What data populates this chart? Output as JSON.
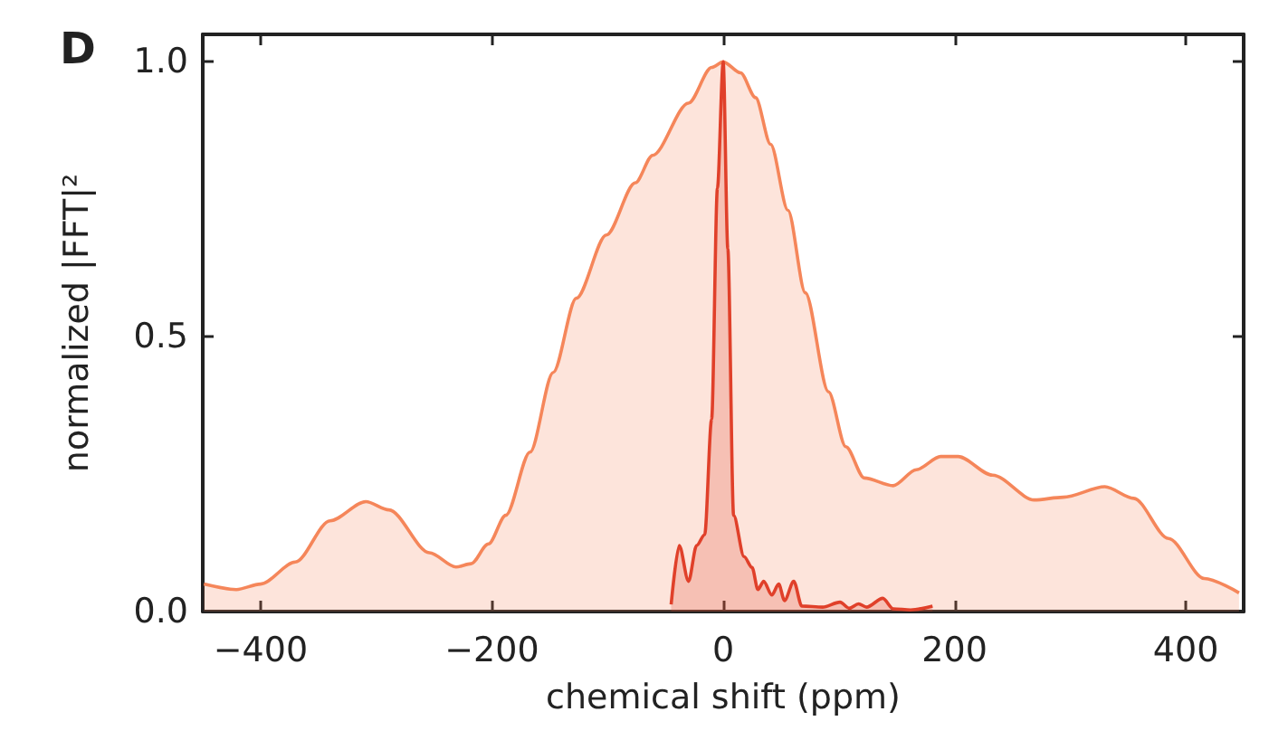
{
  "chart_data": {
    "type": "area",
    "title": "D",
    "xlabel": "chemical shift (ppm)",
    "ylabel": "normalized |FFT|²",
    "xlim": [
      -450,
      450
    ],
    "xticks": [
      -400,
      -200,
      0,
      200,
      400
    ],
    "ylim": [
      0,
      1.05
    ],
    "yticks": [
      {
        "value": 0,
        "label": "0.0"
      },
      0.5,
      {
        "value": 1,
        "label": "1.0"
      }
    ],
    "grid": false,
    "marker": "none",
    "line_style": "solid",
    "series": [
      {
        "color": "#f5865a",
        "x": [
          -449,
          -421,
          -400,
          -370,
          -340,
          -309,
          -289,
          -254,
          -231,
          -218,
          -203,
          -188,
          -167,
          -147,
          -127,
          -101,
          -76,
          -61,
          -30,
          -10,
          0,
          15,
          28,
          41,
          56,
          71,
          91,
          106,
          122,
          147,
          167,
          188,
          203,
          233,
          269,
          294,
          330,
          355,
          385,
          416,
          446
        ],
        "values": [
          0.05,
          0.04,
          0.05,
          0.09,
          0.165,
          0.2,
          0.185,
          0.107,
          0.081,
          0.087,
          0.123,
          0.175,
          0.29,
          0.435,
          0.57,
          0.685,
          0.78,
          0.83,
          0.925,
          0.99,
          1.0,
          0.98,
          0.935,
          0.85,
          0.73,
          0.58,
          0.4,
          0.3,
          0.243,
          0.229,
          0.258,
          0.282,
          0.282,
          0.248,
          0.203,
          0.208,
          0.227,
          0.206,
          0.133,
          0.06,
          0.034
        ]
      },
      {
        "color": "#e0402a",
        "x": [
          -45,
          -38,
          -30,
          -23,
          -16,
          -10,
          -5,
          0,
          4,
          9,
          18,
          25,
          30,
          35,
          42,
          48,
          53,
          61,
          68,
          86,
          101,
          109,
          117,
          124,
          138,
          147,
          162,
          181
        ],
        "values": [
          0.013,
          0.12,
          0.055,
          0.12,
          0.14,
          0.35,
          0.77,
          1.0,
          0.66,
          0.175,
          0.1,
          0.08,
          0.04,
          0.055,
          0.03,
          0.05,
          0.02,
          0.055,
          0.01,
          0.008,
          0.017,
          0.006,
          0.014,
          0.008,
          0.024,
          0.005,
          0.003,
          0.01
        ]
      }
    ]
  }
}
